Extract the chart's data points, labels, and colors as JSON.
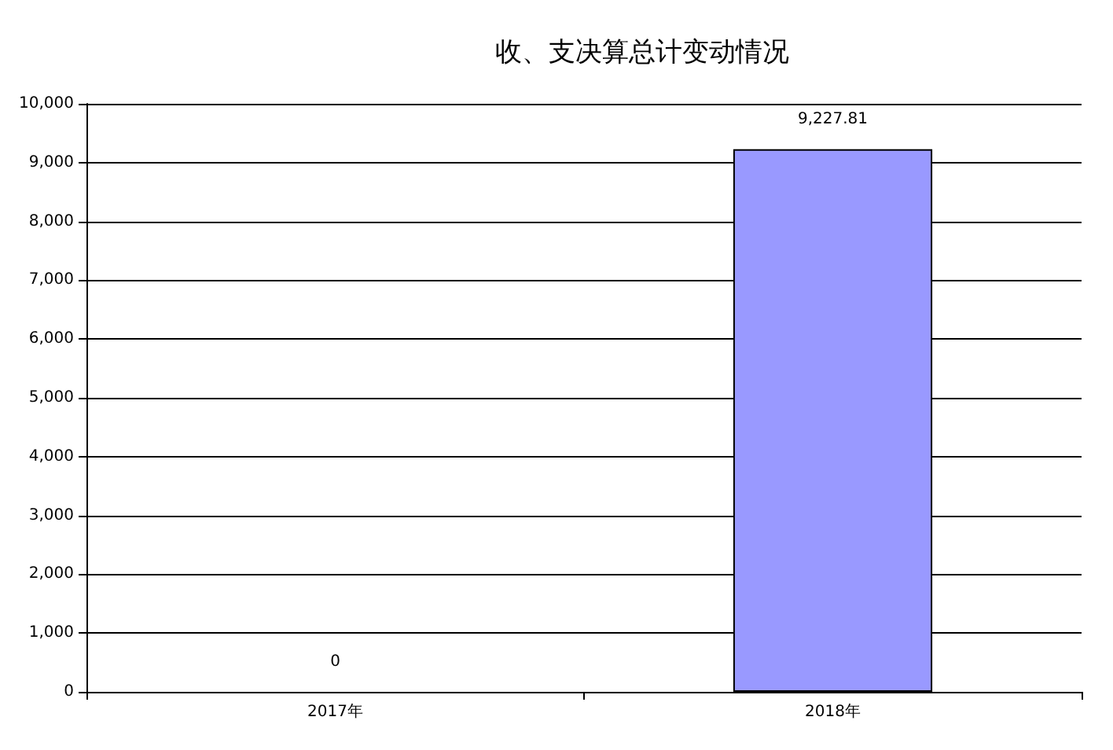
{
  "chart_data": {
    "type": "bar",
    "title": "收、支决算总计变动情况",
    "categories": [
      "2017年",
      "2018年"
    ],
    "values": [
      0,
      9227.81
    ],
    "value_labels": [
      "0",
      "9,227.81"
    ],
    "color": "#9999ff",
    "ylim": [
      0,
      10000
    ],
    "yticks": [
      {
        "value": 0,
        "label": "0"
      },
      {
        "value": 1000,
        "label": "1,000"
      },
      {
        "value": 2000,
        "label": "2,000"
      },
      {
        "value": 3000,
        "label": "3,000"
      },
      {
        "value": 4000,
        "label": "4,000"
      },
      {
        "value": 5000,
        "label": "5,000"
      },
      {
        "value": 6000,
        "label": "6,000"
      },
      {
        "value": 7000,
        "label": "7,000"
      },
      {
        "value": 8000,
        "label": "8,000"
      },
      {
        "value": 9000,
        "label": "9,000"
      },
      {
        "value": 10000,
        "label": "10,000"
      }
    ],
    "grid": true
  }
}
